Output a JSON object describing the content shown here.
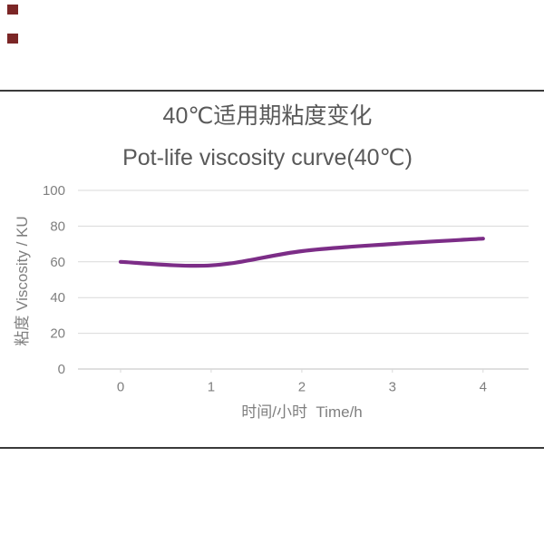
{
  "page": {
    "icons": {
      "placeholder_1": "broken-image-placeholder",
      "placeholder_2": "broken-image-placeholder"
    },
    "colors": {
      "background": "#ffffff",
      "divider": "#3a3a3a",
      "placeholder": "#7b2626",
      "title_text": "#595959",
      "axis_text": "#7f7f7f",
      "gridline": "#d9d9d9",
      "axis_line": "#bfbfbf",
      "accent_line": "#7c2d87"
    }
  },
  "chart_data": {
    "type": "line",
    "title": "40℃适用期粘度变化",
    "subtitle": "Pot-life viscosity curve(40℃)",
    "x": [
      0,
      1,
      2,
      3,
      4
    ],
    "series": [
      {
        "name": "粘度 Viscosity",
        "values": [
          60,
          58,
          66,
          70,
          73
        ]
      }
    ],
    "xlabel": "时间/小时  Time/h",
    "ylabel": "粘度 Viscosity / KU",
    "xlim": [
      0,
      4
    ],
    "ylim": [
      0,
      100
    ],
    "yticks": [
      0,
      20,
      40,
      60,
      80,
      100
    ],
    "xticks": [
      0,
      1,
      2,
      3,
      4
    ],
    "grid": true,
    "legend": "none",
    "line_style": "smooth",
    "line_color": "#7c2d87",
    "line_width": 4.2
  }
}
